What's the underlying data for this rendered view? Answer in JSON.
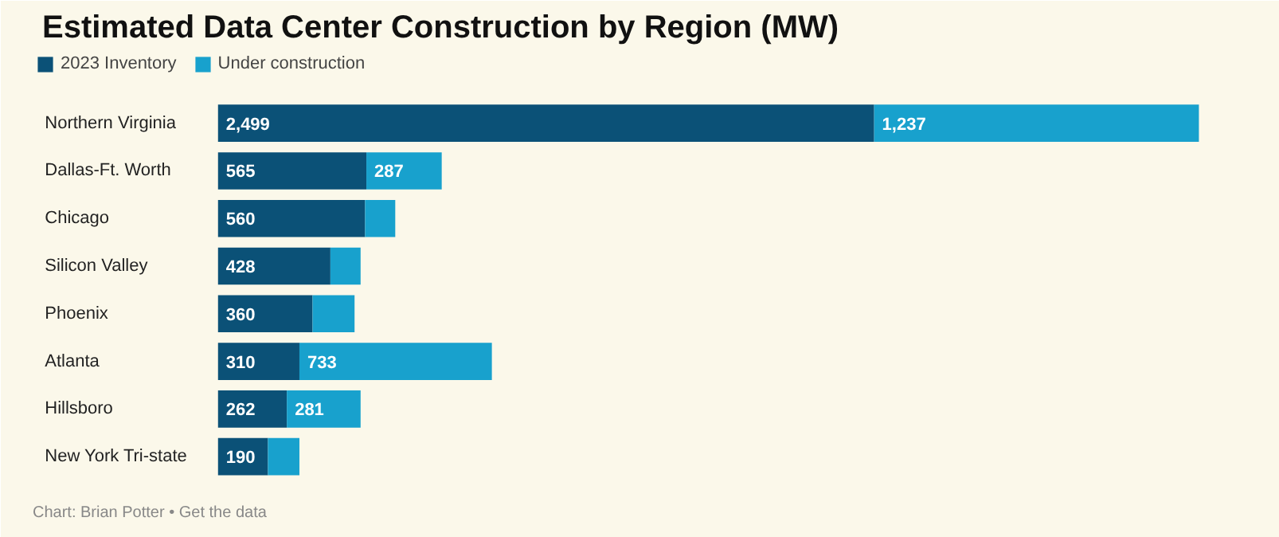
{
  "chart_data": {
    "type": "bar",
    "orientation": "horizontal",
    "stacked": true,
    "title": "Estimated Data Center Construction by Region (MW)",
    "categories": [
      "Northern Virginia",
      "Dallas-Ft. Worth",
      "Chicago",
      "Silicon Valley",
      "Phoenix",
      "Atlanta",
      "Hillsboro",
      "New York Tri-state"
    ],
    "series": [
      {
        "name": "2023 Inventory",
        "color": "#0b5177",
        "values": [
          2499,
          565,
          560,
          428,
          360,
          310,
          262,
          190
        ],
        "value_labels": [
          "2,499",
          "565",
          "560",
          "428",
          "360",
          "310",
          "262",
          "190"
        ]
      },
      {
        "name": "Under construction",
        "color": "#18a1cd",
        "values": [
          1237,
          287,
          115,
          115,
          160,
          733,
          281,
          120
        ],
        "value_labels": [
          "1,237",
          "287",
          null,
          null,
          null,
          "733",
          "281",
          null
        ]
      }
    ],
    "legend": "top left",
    "grid": false,
    "annotations": [
      "Chart: Brian Potter • Get the data"
    ]
  }
}
